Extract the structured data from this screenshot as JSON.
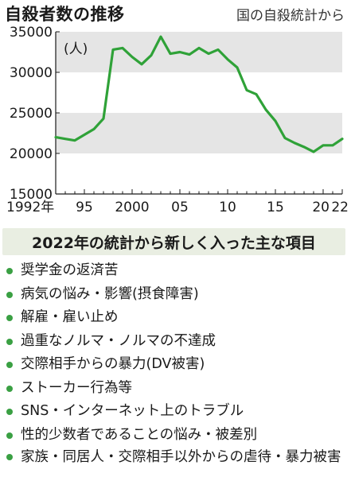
{
  "header": {
    "title": "自殺者数の推移",
    "source": "国の自殺統計から"
  },
  "chart_data": {
    "type": "line",
    "unit_label": "(人)",
    "x": [
      1992,
      1993,
      1994,
      1995,
      1996,
      1997,
      1998,
      1999,
      2000,
      2001,
      2002,
      2003,
      2004,
      2005,
      2006,
      2007,
      2008,
      2009,
      2010,
      2011,
      2012,
      2013,
      2014,
      2015,
      2016,
      2017,
      2018,
      2019,
      2020,
      2021,
      2022
    ],
    "series": [
      {
        "values": [
          22000,
          21800,
          21600,
          22300,
          23000,
          24300,
          32800,
          33000,
          31900,
          31000,
          32100,
          34400,
          32300,
          32500,
          32200,
          33000,
          32300,
          32800,
          31600,
          30600,
          27800,
          27300,
          25400,
          24000,
          21900,
          21300,
          20800,
          20200,
          21000,
          21000,
          21800
        ]
      }
    ],
    "xticks": [
      {
        "value": 1992,
        "label": "1992年"
      },
      {
        "value": 1995,
        "label": "95"
      },
      {
        "value": 2000,
        "label": "2000"
      },
      {
        "value": 2005,
        "label": "05"
      },
      {
        "value": 2010,
        "label": "10"
      },
      {
        "value": 2015,
        "label": "15"
      },
      {
        "value": 2020,
        "label": "20"
      },
      {
        "value": 2022,
        "label": "22"
      }
    ],
    "yticks": [
      {
        "value": 15000,
        "label": "15000"
      },
      {
        "value": 20000,
        "label": "20000"
      },
      {
        "value": 25000,
        "label": "25000"
      },
      {
        "value": 30000,
        "label": "30000"
      },
      {
        "value": 35000,
        "label": "35000"
      }
    ],
    "ylim": [
      15000,
      35000
    ],
    "xlim": [
      1992,
      2022
    ],
    "line_color": "#2fa238",
    "band_color": "#e5e5e5"
  },
  "subtitle": "2022年の統計から新しく入った主な項目",
  "items": [
    "奨学金の返済苦",
    "病気の悩み・影響(摂食障害)",
    "解雇・雇い止め",
    "過重なノルマ・ノルマの不達成",
    "交際相手からの暴力(DV被害)",
    "ストーカー行為等",
    "SNS・インターネット上のトラブル",
    "性的少数者であることの悩み・被差別",
    "家族・同居人・交際相手以外からの虐待・暴力被害"
  ],
  "colors": {
    "bullet": "#3aa043",
    "subtitle_bg": "#e9eee2"
  }
}
